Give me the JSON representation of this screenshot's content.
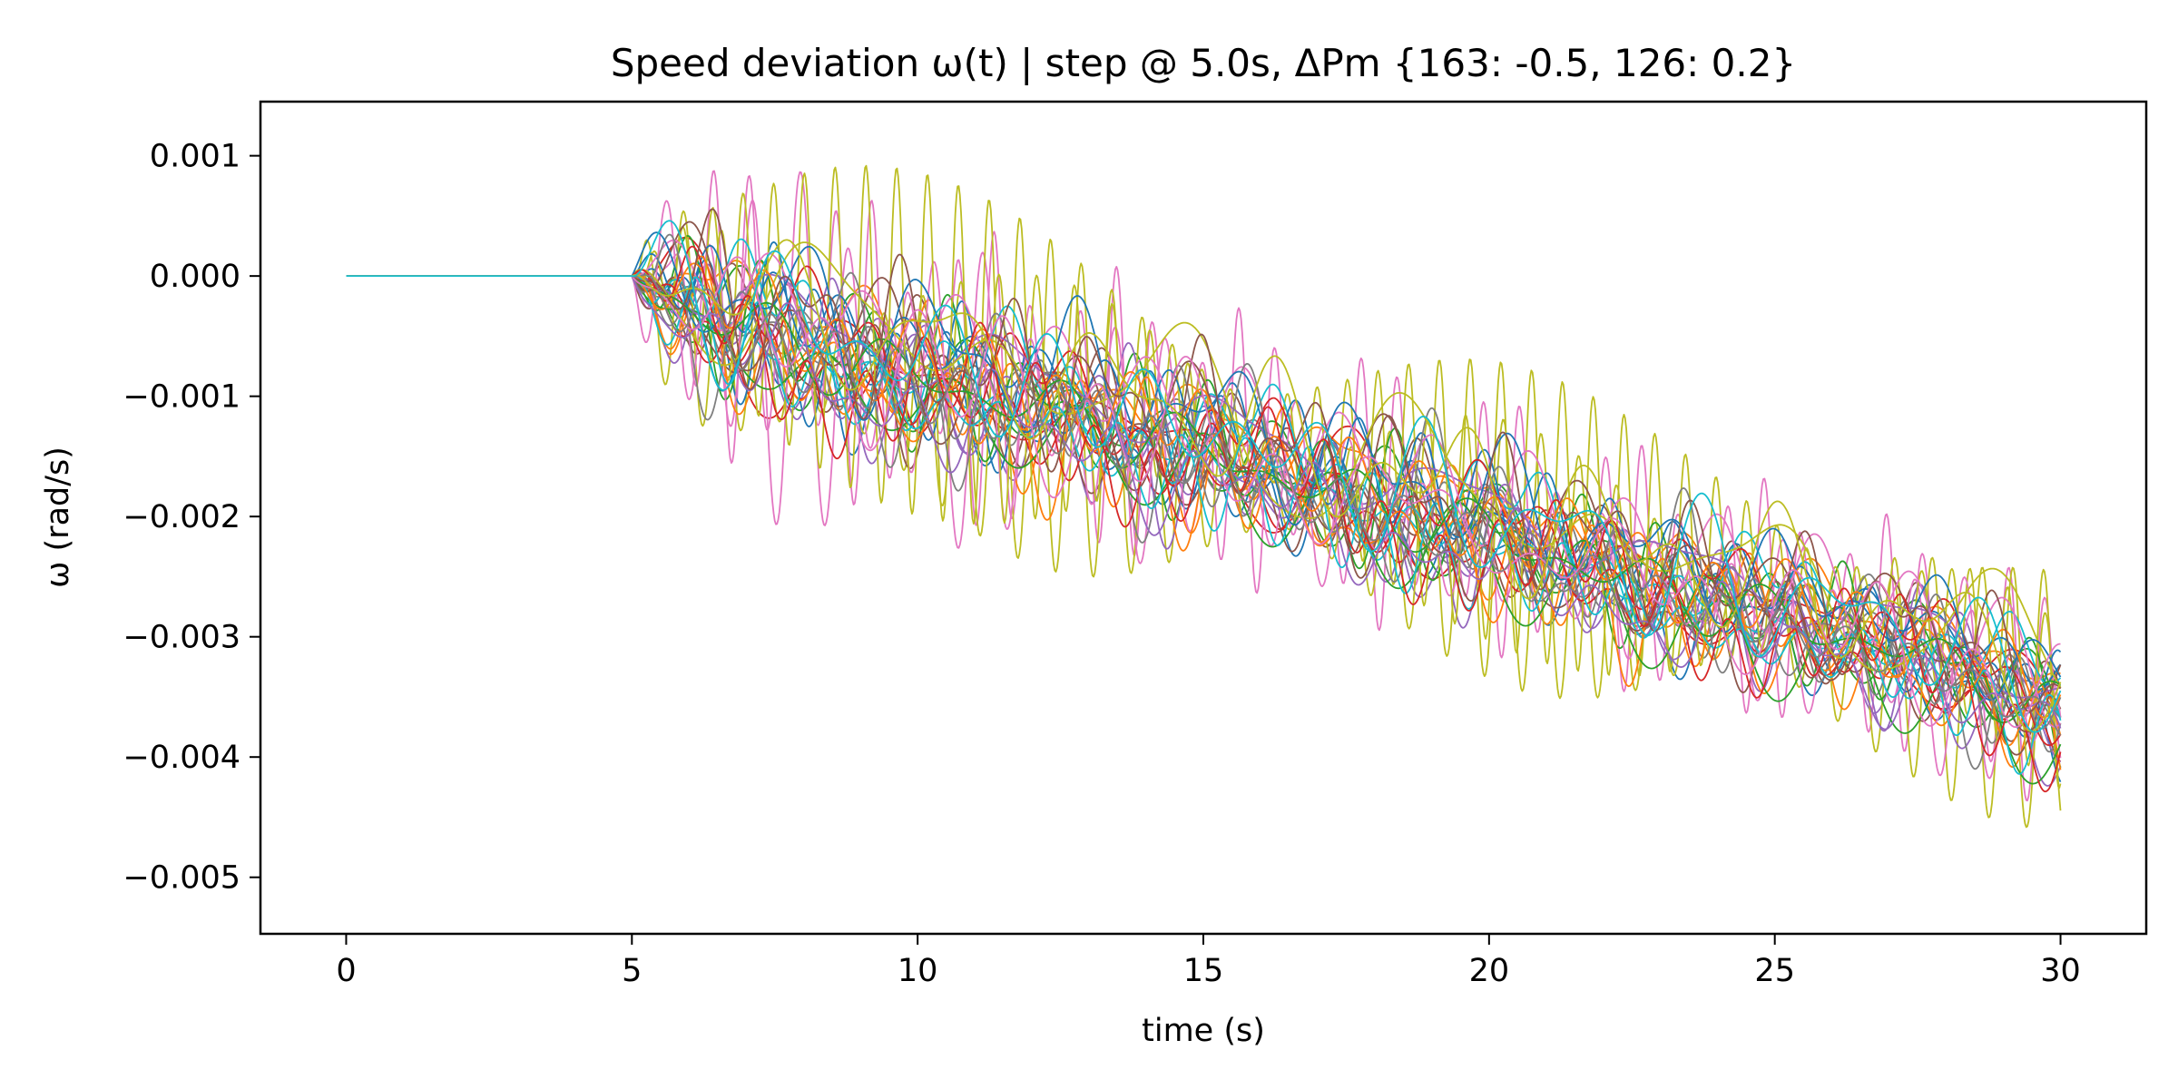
{
  "chart_data": {
    "type": "line",
    "title": "Speed deviation ω(t)  |  step @ 5.0s, ΔPm {163: -0.5, 126: 0.2}",
    "xlabel": "time (s)",
    "ylabel": "ω (rad/s)",
    "xlim": [
      -1.5,
      31.5
    ],
    "ylim": [
      -0.00547,
      0.00145
    ],
    "xticks": [
      0,
      5,
      10,
      15,
      20,
      25,
      30
    ],
    "xtick_labels": [
      "0",
      "5",
      "10",
      "15",
      "20",
      "25",
      "30"
    ],
    "yticks": [
      0.001,
      0.0,
      -0.001,
      -0.002,
      -0.003,
      -0.004,
      -0.005
    ],
    "ytick_labels": [
      "0.001",
      "0.000",
      "−0.001",
      "−0.002",
      "−0.003",
      "−0.004",
      "−0.005"
    ],
    "grid": false,
    "legend": "none",
    "step_time": 5.0,
    "trend_points": [
      [
        5,
        0.0
      ],
      [
        7.5,
        -0.0005
      ],
      [
        10,
        -0.0008
      ],
      [
        12.5,
        -0.0011
      ],
      [
        15,
        -0.0014
      ],
      [
        17.5,
        -0.0018
      ],
      [
        20,
        -0.0021
      ],
      [
        22.5,
        -0.0025
      ],
      [
        25,
        -0.0028
      ],
      [
        27.5,
        -0.0031
      ],
      [
        30,
        -0.0036
      ]
    ],
    "trace_count": 40,
    "traces_start": {
      "x": 0,
      "y": 0.0
    },
    "traces_end_range_at_30s": [
      -0.00515,
      -0.0028
    ],
    "extremes": {
      "max": 0.00115,
      "max_at": 8.5,
      "min": -0.00515,
      "min_at": 30.0
    },
    "colors": [
      "#1f77b4",
      "#ff7f0e",
      "#2ca02c",
      "#d62728",
      "#9467bd",
      "#8c564b",
      "#e377c2",
      "#7f7f7f",
      "#bcbd22",
      "#17becf"
    ]
  }
}
